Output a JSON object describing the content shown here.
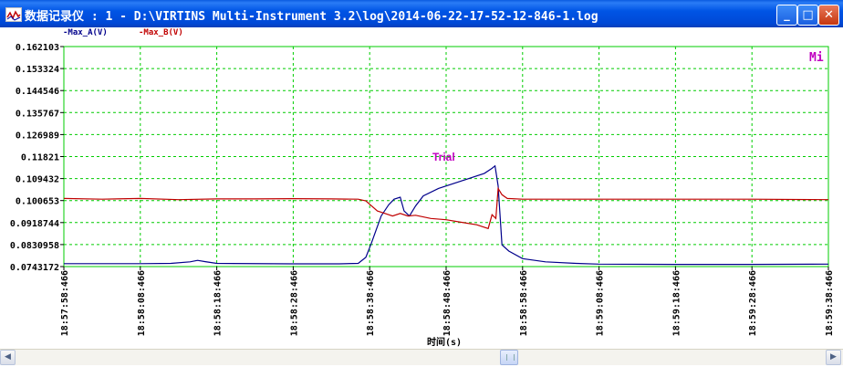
{
  "window": {
    "title": "数据记录仪 : 1 - D:\\VIRTINS Multi-Instrument 3.2\\log\\2014-06-22-17-52-12-846-1.log",
    "minimize_label": "_",
    "maximize_label": "□",
    "close_label": "✕"
  },
  "legend": {
    "series_a": "-Max_A(V)",
    "series_b": "-Max_B(V)",
    "corner_label": "Mi"
  },
  "scrollbar": {
    "left_arrow": "◀",
    "right_arrow": "▶"
  },
  "chart_data": {
    "type": "line",
    "xlabel": "时间(s)",
    "ylabel": "",
    "annotation": "Trial",
    "grid": true,
    "grid_color": "#00cc00",
    "ylim": [
      0.0743172,
      0.162103
    ],
    "yticks": [
      "0.162103",
      "0.153324",
      "0.144546",
      "0.135767",
      "0.126989",
      "0.11821",
      "0.109432",
      "0.100653",
      "0.0918744",
      "0.0830958",
      "0.0743172"
    ],
    "xticks": [
      "18:57:58:466",
      "18:58:08:466",
      "18:58:18:466",
      "18:58:28:466",
      "18:58:38:466",
      "18:58:48:466",
      "18:58:58:466",
      "18:59:08:466",
      "18:59:18:466",
      "18:59:28:466",
      "18:59:38:466"
    ],
    "x_unit": "s",
    "x_range": [
      0,
      100
    ],
    "series": [
      {
        "name": "Max_A(V)",
        "color": "#00008b",
        "points": [
          [
            0,
            0.0755
          ],
          [
            10,
            0.0755
          ],
          [
            14,
            0.0756
          ],
          [
            16.5,
            0.0762
          ],
          [
            17.5,
            0.0768
          ],
          [
            18.5,
            0.0763
          ],
          [
            20,
            0.0756
          ],
          [
            30,
            0.0754
          ],
          [
            36,
            0.0754
          ],
          [
            38.5,
            0.0756
          ],
          [
            39.5,
            0.078
          ],
          [
            40.2,
            0.0835
          ],
          [
            41.5,
            0.0945
          ],
          [
            42.5,
            0.099
          ],
          [
            43.2,
            0.1012
          ],
          [
            44,
            0.102
          ],
          [
            44.5,
            0.0965
          ],
          [
            45.2,
            0.0945
          ],
          [
            46,
            0.0985
          ],
          [
            47,
            0.1025
          ],
          [
            49,
            0.1055
          ],
          [
            52,
            0.1085
          ],
          [
            55,
            0.1115
          ],
          [
            56,
            0.1135
          ],
          [
            56.4,
            0.1145
          ],
          [
            56.8,
            0.1065
          ],
          [
            57.3,
            0.083
          ],
          [
            58.2,
            0.0805
          ],
          [
            60,
            0.0775
          ],
          [
            63,
            0.0762
          ],
          [
            67,
            0.0756
          ],
          [
            70,
            0.0753
          ],
          [
            80,
            0.0752
          ],
          [
            90,
            0.0752
          ],
          [
            100,
            0.0753
          ]
        ]
      },
      {
        "name": "Max_B(V)",
        "color": "#c00000",
        "points": [
          [
            0,
            0.1015
          ],
          [
            5,
            0.1012
          ],
          [
            10,
            0.1015
          ],
          [
            15,
            0.101
          ],
          [
            20,
            0.1013
          ],
          [
            25,
            0.1013
          ],
          [
            30,
            0.1014
          ],
          [
            35,
            0.1013
          ],
          [
            38.5,
            0.1012
          ],
          [
            39.5,
            0.1005
          ],
          [
            41,
            0.0965
          ],
          [
            42,
            0.0955
          ],
          [
            43,
            0.0945
          ],
          [
            44,
            0.0955
          ],
          [
            45,
            0.0945
          ],
          [
            46,
            0.0948
          ],
          [
            48,
            0.0935
          ],
          [
            50,
            0.093
          ],
          [
            52,
            0.092
          ],
          [
            54,
            0.091
          ],
          [
            55.5,
            0.0895
          ],
          [
            56,
            0.095
          ],
          [
            56.5,
            0.0935
          ],
          [
            56.8,
            0.1055
          ],
          [
            57.3,
            0.103
          ],
          [
            58,
            0.1015
          ],
          [
            60,
            0.1012
          ],
          [
            70,
            0.1012
          ],
          [
            80,
            0.1012
          ],
          [
            90,
            0.1012
          ],
          [
            100,
            0.101
          ]
        ]
      }
    ]
  }
}
